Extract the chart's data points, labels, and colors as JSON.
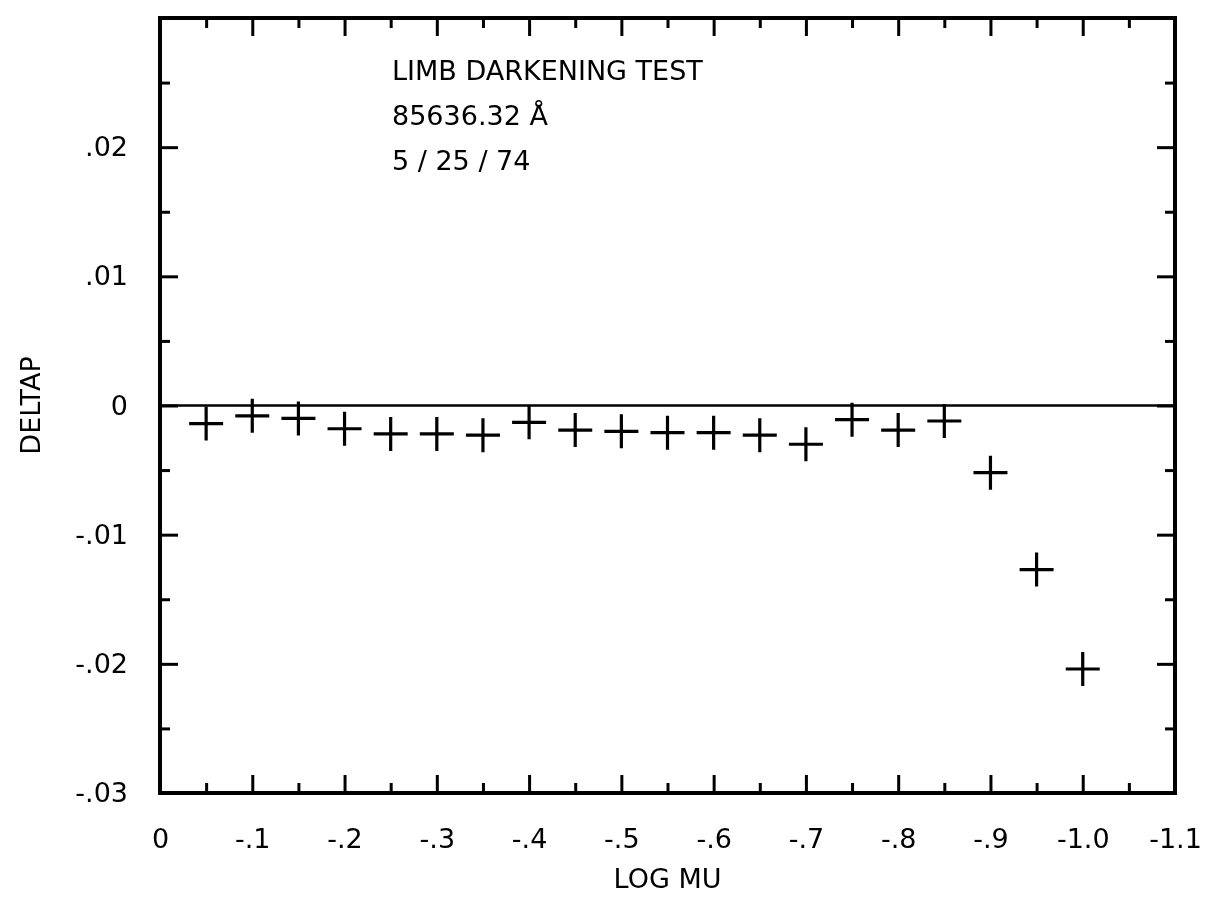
{
  "chart_data": {
    "type": "scatter",
    "xlabel": "LOG MU",
    "ylabel": "DELTAP",
    "annotations": [
      "LIMB DARKENING TEST",
      "85636.32 Å",
      "5 / 25 / 74"
    ],
    "x": [
      -0.05,
      -0.1,
      -0.15,
      -0.2,
      -0.25,
      -0.3,
      -0.35,
      -0.4,
      -0.45,
      -0.5,
      -0.55,
      -0.6,
      -0.65,
      -0.7,
      -0.75,
      -0.8,
      -0.85,
      -0.9,
      -0.95,
      -1.0
    ],
    "values": [
      -0.0014,
      -0.0008,
      -0.001,
      -0.0018,
      -0.0022,
      -0.0022,
      -0.0023,
      -0.0013,
      -0.0019,
      -0.002,
      -0.0021,
      -0.0021,
      -0.0023,
      -0.003,
      -0.0011,
      -0.0019,
      -0.0012,
      -0.0052,
      -0.0127,
      -0.0204
    ],
    "color": "#000000",
    "marker": "cross",
    "grid": false,
    "xlim": [
      0,
      -1.1
    ],
    "xticks": [
      0,
      {
        "value": -0.05,
        "label": null
      },
      {
        "value": -0.1,
        "label": "-.1"
      },
      {
        "value": -0.15,
        "label": null
      },
      {
        "value": -0.2,
        "label": "-.2"
      },
      {
        "value": -0.25,
        "label": null
      },
      {
        "value": -0.3,
        "label": "-.3"
      },
      {
        "value": -0.35,
        "label": null
      },
      {
        "value": -0.4,
        "label": "-.4"
      },
      {
        "value": -0.45,
        "label": null
      },
      {
        "value": -0.5,
        "label": "-.5"
      },
      {
        "value": -0.55,
        "label": null
      },
      {
        "value": -0.6,
        "label": "-.6"
      },
      {
        "value": -0.65,
        "label": null
      },
      {
        "value": -0.7,
        "label": "-.7"
      },
      {
        "value": -0.75,
        "label": null
      },
      {
        "value": -0.8,
        "label": "-.8"
      },
      {
        "value": -0.85,
        "label": null
      },
      {
        "value": -0.9,
        "label": "-.9"
      },
      {
        "value": -0.95,
        "label": null
      },
      {
        "value": -1.0,
        "label": "-1.0"
      },
      {
        "value": -1.05,
        "label": null
      },
      {
        "value": -1.1,
        "label": "-1.1"
      }
    ],
    "ylim": [
      -0.03,
      0.03
    ],
    "yticks": [
      {
        "value": -0.03,
        "label": "-.03"
      },
      {
        "value": -0.025,
        "label": null
      },
      {
        "value": -0.02,
        "label": "-.02"
      },
      {
        "value": -0.015,
        "label": null
      },
      {
        "value": -0.01,
        "label": "-.01"
      },
      {
        "value": -0.005,
        "label": null
      },
      0,
      {
        "value": 0.005,
        "label": null
      },
      {
        "value": 0.01,
        "label": ".01"
      },
      {
        "value": 0.015,
        "label": null
      },
      {
        "value": 0.02,
        "label": ".02"
      },
      {
        "value": 0.025,
        "label": null
      }
    ],
    "ref_lines": [
      {
        "axis": "y",
        "value": 0,
        "color": "#000000",
        "line_style": "solid"
      }
    ]
  }
}
